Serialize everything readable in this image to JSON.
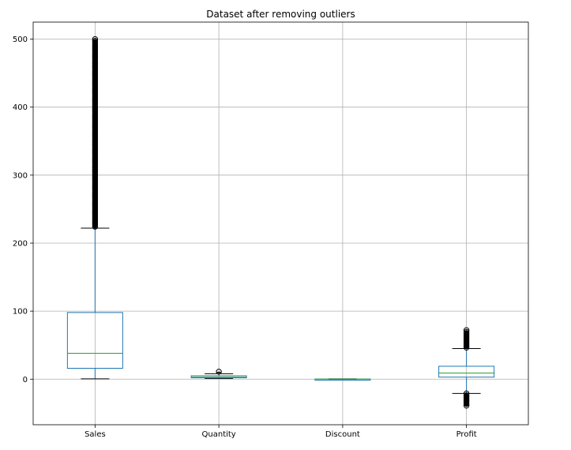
{
  "chart_data": {
    "type": "box",
    "title": "Dataset after removing outliers",
    "xlabel": "",
    "ylabel": "",
    "ylim": [
      -67,
      525
    ],
    "yticks": [
      0,
      100,
      200,
      300,
      400,
      500
    ],
    "grid": true,
    "legend": "none",
    "colors": {
      "box": "#1f77b4",
      "median": "#2ca02c",
      "whisker": "#1f77b4",
      "cap": "#000000",
      "flier": "#000000",
      "grid": "#b0b0b0"
    },
    "categories": [
      "Sales",
      "Quantity",
      "Discount",
      "Profit"
    ],
    "boxes": [
      {
        "name": "Sales",
        "whisker_low": 0.4,
        "q1": 16,
        "median": 38,
        "q3": 98,
        "whisker_high": 222,
        "fliers_high": [
          222,
          500
        ],
        "fliers_low": null
      },
      {
        "name": "Quantity",
        "whisker_low": 1,
        "q1": 2,
        "median": 3,
        "q3": 5,
        "whisker_high": 8,
        "fliers_high": [
          9,
          11
        ],
        "fliers_low": null
      },
      {
        "name": "Discount",
        "whisker_low": 0,
        "q1": 0,
        "median": 0.2,
        "q3": 0.2,
        "whisker_high": 0.5,
        "fliers_high": null,
        "fliers_low": null
      },
      {
        "name": "Profit",
        "whisker_low": -21,
        "q1": 3,
        "median": 9,
        "q3": 19,
        "whisker_high": 45,
        "fliers_high": [
          45,
          72
        ],
        "fliers_low": [
          -40,
          -21
        ]
      }
    ]
  }
}
